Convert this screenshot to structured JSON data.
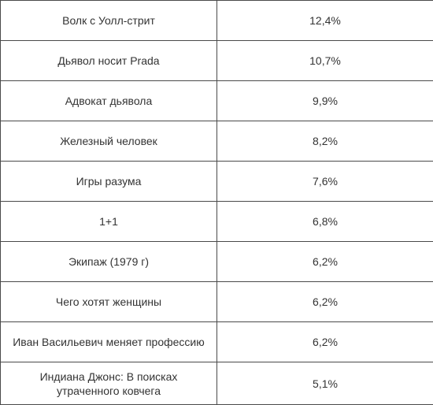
{
  "rows": [
    {
      "title": "Волк с Уолл-стрит",
      "value": "12,4%"
    },
    {
      "title": "Дьявол носит Prada",
      "value": "10,7%"
    },
    {
      "title": "Адвокат дьявола",
      "value": "9,9%"
    },
    {
      "title": "Железный человек",
      "value": "8,2%"
    },
    {
      "title": "Игры разума",
      "value": "7,6%"
    },
    {
      "title": "1+1",
      "value": "6,8%"
    },
    {
      "title": "Экипаж (1979 г)",
      "value": "6,2%"
    },
    {
      "title": "Чего хотят женщины",
      "value": "6,2%"
    },
    {
      "title": "Иван Васильевич меняет профессию",
      "value": "6,2%"
    },
    {
      "title": "Индиана Джонс: В поисках утраченного ковчега",
      "value": "5,1%"
    }
  ]
}
